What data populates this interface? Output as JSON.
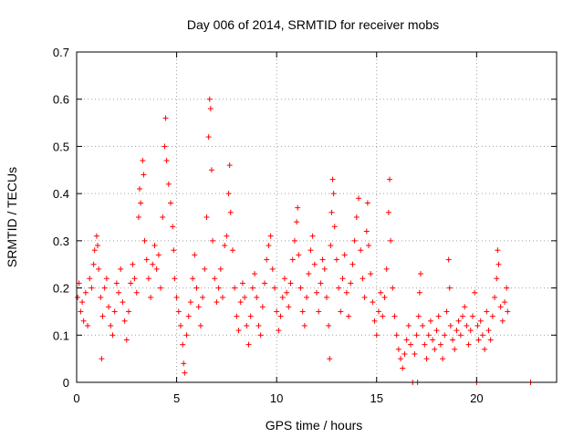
{
  "chart_data": {
    "type": "scatter",
    "title": "Day 006 of 2014, SRMTID for receiver mobs",
    "xlabel": "GPS time / hours",
    "ylabel": "SRMTID / TECUs",
    "xlim": [
      0,
      24
    ],
    "ylim": [
      0,
      0.7
    ],
    "xticks": [
      0,
      5,
      10,
      15,
      20
    ],
    "yticks": [
      0,
      0.1,
      0.2,
      0.3,
      0.4,
      0.5,
      0.6,
      0.7
    ],
    "xtick_labels": [
      "0",
      "5",
      "10",
      "15",
      "20"
    ],
    "ytick_labels": [
      "0",
      "0.1",
      "0.2",
      "0.3",
      "0.4",
      "0.5",
      "0.6",
      "0.7"
    ],
    "grid": true,
    "marker": "+",
    "color": "#ff0000",
    "series": [
      {
        "name": "SRMTID",
        "points": [
          [
            0.05,
            0.18
          ],
          [
            0.12,
            0.21
          ],
          [
            0.2,
            0.15
          ],
          [
            0.28,
            0.17
          ],
          [
            0.35,
            0.13
          ],
          [
            0.45,
            0.19
          ],
          [
            0.55,
            0.12
          ],
          [
            0.65,
            0.22
          ],
          [
            0.75,
            0.2
          ],
          [
            0.85,
            0.25
          ],
          [
            0.9,
            0.28
          ],
          [
            1.0,
            0.31
          ],
          [
            1.05,
            0.29
          ],
          [
            1.1,
            0.24
          ],
          [
            1.2,
            0.18
          ],
          [
            1.25,
            0.05
          ],
          [
            1.3,
            0.14
          ],
          [
            1.4,
            0.2
          ],
          [
            1.5,
            0.22
          ],
          [
            1.6,
            0.16
          ],
          [
            1.7,
            0.12
          ],
          [
            1.8,
            0.1
          ],
          [
            1.9,
            0.15
          ],
          [
            2.0,
            0.21
          ],
          [
            2.1,
            0.19
          ],
          [
            2.2,
            0.24
          ],
          [
            2.3,
            0.17
          ],
          [
            2.4,
            0.13
          ],
          [
            2.5,
            0.09
          ],
          [
            2.6,
            0.15
          ],
          [
            2.7,
            0.21
          ],
          [
            2.8,
            0.25
          ],
          [
            2.9,
            0.22
          ],
          [
            3.0,
            0.19
          ],
          [
            3.1,
            0.35
          ],
          [
            3.15,
            0.41
          ],
          [
            3.2,
            0.38
          ],
          [
            3.3,
            0.47
          ],
          [
            3.35,
            0.44
          ],
          [
            3.4,
            0.3
          ],
          [
            3.5,
            0.26
          ],
          [
            3.6,
            0.22
          ],
          [
            3.7,
            0.18
          ],
          [
            3.8,
            0.25
          ],
          [
            3.9,
            0.29
          ],
          [
            4.0,
            0.24
          ],
          [
            4.1,
            0.27
          ],
          [
            4.2,
            0.2
          ],
          [
            4.3,
            0.35
          ],
          [
            4.4,
            0.5
          ],
          [
            4.45,
            0.56
          ],
          [
            4.5,
            0.47
          ],
          [
            4.6,
            0.42
          ],
          [
            4.7,
            0.38
          ],
          [
            4.8,
            0.33
          ],
          [
            4.85,
            0.28
          ],
          [
            4.9,
            0.22
          ],
          [
            5.0,
            0.18
          ],
          [
            5.1,
            0.15
          ],
          [
            5.2,
            0.12
          ],
          [
            5.3,
            0.08
          ],
          [
            5.35,
            0.04
          ],
          [
            5.4,
            0.02
          ],
          [
            5.5,
            0.1
          ],
          [
            5.6,
            0.14
          ],
          [
            5.7,
            0.17
          ],
          [
            5.8,
            0.22
          ],
          [
            5.9,
            0.27
          ],
          [
            6.0,
            0.2
          ],
          [
            6.1,
            0.16
          ],
          [
            6.2,
            0.12
          ],
          [
            6.3,
            0.18
          ],
          [
            6.4,
            0.24
          ],
          [
            6.5,
            0.35
          ],
          [
            6.6,
            0.52
          ],
          [
            6.65,
            0.6
          ],
          [
            6.7,
            0.58
          ],
          [
            6.75,
            0.45
          ],
          [
            6.8,
            0.3
          ],
          [
            6.9,
            0.22
          ],
          [
            7.0,
            0.17
          ],
          [
            7.1,
            0.2
          ],
          [
            7.2,
            0.24
          ],
          [
            7.3,
            0.18
          ],
          [
            7.4,
            0.29
          ],
          [
            7.5,
            0.31
          ],
          [
            7.6,
            0.4
          ],
          [
            7.65,
            0.46
          ],
          [
            7.7,
            0.36
          ],
          [
            7.8,
            0.28
          ],
          [
            7.9,
            0.2
          ],
          [
            8.0,
            0.14
          ],
          [
            8.1,
            0.11
          ],
          [
            8.2,
            0.17
          ],
          [
            8.3,
            0.21
          ],
          [
            8.4,
            0.18
          ],
          [
            8.5,
            0.12
          ],
          [
            8.6,
            0.08
          ],
          [
            8.7,
            0.14
          ],
          [
            8.8,
            0.2
          ],
          [
            8.9,
            0.23
          ],
          [
            9.0,
            0.18
          ],
          [
            9.1,
            0.12
          ],
          [
            9.2,
            0.1
          ],
          [
            9.3,
            0.16
          ],
          [
            9.4,
            0.21
          ],
          [
            9.5,
            0.26
          ],
          [
            9.6,
            0.29
          ],
          [
            9.7,
            0.31
          ],
          [
            9.8,
            0.24
          ],
          [
            9.9,
            0.2
          ],
          [
            10.0,
            0.15
          ],
          [
            10.1,
            0.11
          ],
          [
            10.2,
            0.14
          ],
          [
            10.3,
            0.18
          ],
          [
            10.4,
            0.22
          ],
          [
            10.5,
            0.19
          ],
          [
            10.6,
            0.16
          ],
          [
            10.7,
            0.21
          ],
          [
            10.8,
            0.26
          ],
          [
            10.9,
            0.3
          ],
          [
            11.0,
            0.34
          ],
          [
            11.05,
            0.37
          ],
          [
            11.1,
            0.27
          ],
          [
            11.2,
            0.2
          ],
          [
            11.3,
            0.15
          ],
          [
            11.4,
            0.12
          ],
          [
            11.5,
            0.18
          ],
          [
            11.6,
            0.23
          ],
          [
            11.7,
            0.28
          ],
          [
            11.8,
            0.31
          ],
          [
            11.9,
            0.25
          ],
          [
            12.0,
            0.19
          ],
          [
            12.1,
            0.15
          ],
          [
            12.2,
            0.21
          ],
          [
            12.3,
            0.26
          ],
          [
            12.4,
            0.24
          ],
          [
            12.5,
            0.18
          ],
          [
            12.6,
            0.12
          ],
          [
            12.65,
            0.05
          ],
          [
            12.7,
            0.29
          ],
          [
            12.75,
            0.36
          ],
          [
            12.8,
            0.43
          ],
          [
            12.85,
            0.4
          ],
          [
            12.9,
            0.33
          ],
          [
            13.0,
            0.26
          ],
          [
            13.1,
            0.2
          ],
          [
            13.2,
            0.15
          ],
          [
            13.3,
            0.22
          ],
          [
            13.4,
            0.27
          ],
          [
            13.5,
            0.19
          ],
          [
            13.6,
            0.14
          ],
          [
            13.7,
            0.21
          ],
          [
            13.8,
            0.25
          ],
          [
            13.9,
            0.3
          ],
          [
            14.0,
            0.35
          ],
          [
            14.1,
            0.39
          ],
          [
            14.2,
            0.28
          ],
          [
            14.3,
            0.22
          ],
          [
            14.4,
            0.18
          ],
          [
            14.5,
            0.32
          ],
          [
            14.55,
            0.38
          ],
          [
            14.6,
            0.29
          ],
          [
            14.7,
            0.23
          ],
          [
            14.8,
            0.17
          ],
          [
            14.9,
            0.13
          ],
          [
            15.0,
            0.1
          ],
          [
            15.1,
            0.15
          ],
          [
            15.2,
            0.19
          ],
          [
            15.3,
            0.14
          ],
          [
            15.4,
            0.18
          ],
          [
            15.5,
            0.24
          ],
          [
            15.6,
            0.36
          ],
          [
            15.65,
            0.43
          ],
          [
            15.7,
            0.3
          ],
          [
            15.8,
            0.2
          ],
          [
            15.9,
            0.14
          ],
          [
            16.0,
            0.1
          ],
          [
            16.1,
            0.07
          ],
          [
            16.2,
            0.05
          ],
          [
            16.3,
            0.03
          ],
          [
            16.4,
            0.06
          ],
          [
            16.5,
            0.09
          ],
          [
            16.6,
            0.12
          ],
          [
            16.7,
            0.08
          ],
          [
            16.8,
            0.0
          ],
          [
            16.9,
            0.06
          ],
          [
            17.0,
            0.1
          ],
          [
            17.05,
            0.0
          ],
          [
            17.1,
            0.14
          ],
          [
            17.15,
            0.19
          ],
          [
            17.2,
            0.23
          ],
          [
            17.3,
            0.12
          ],
          [
            17.4,
            0.08
          ],
          [
            17.5,
            0.05
          ],
          [
            17.6,
            0.1
          ],
          [
            17.7,
            0.13
          ],
          [
            17.8,
            0.09
          ],
          [
            17.9,
            0.07
          ],
          [
            18.0,
            0.11
          ],
          [
            18.1,
            0.14
          ],
          [
            18.2,
            0.08
          ],
          [
            18.3,
            0.05
          ],
          [
            18.4,
            0.1
          ],
          [
            18.5,
            0.15
          ],
          [
            18.6,
            0.26
          ],
          [
            18.65,
            0.2
          ],
          [
            18.7,
            0.12
          ],
          [
            18.8,
            0.09
          ],
          [
            18.9,
            0.07
          ],
          [
            19.0,
            0.11
          ],
          [
            19.1,
            0.13
          ],
          [
            19.2,
            0.1
          ],
          [
            19.3,
            0.14
          ],
          [
            19.4,
            0.16
          ],
          [
            19.5,
            0.12
          ],
          [
            19.6,
            0.08
          ],
          [
            19.7,
            0.11
          ],
          [
            19.8,
            0.14
          ],
          [
            19.9,
            0.19
          ],
          [
            20.0,
            0.0
          ],
          [
            20.05,
            0.12
          ],
          [
            20.1,
            0.09
          ],
          [
            20.2,
            0.13
          ],
          [
            20.3,
            0.1
          ],
          [
            20.4,
            0.07
          ],
          [
            20.5,
            0.15
          ],
          [
            20.6,
            0.11
          ],
          [
            20.7,
            0.09
          ],
          [
            20.8,
            0.14
          ],
          [
            20.9,
            0.18
          ],
          [
            21.0,
            0.22
          ],
          [
            21.05,
            0.28
          ],
          [
            21.1,
            0.25
          ],
          [
            21.2,
            0.16
          ],
          [
            21.3,
            0.13
          ],
          [
            21.4,
            0.17
          ],
          [
            21.5,
            0.2
          ],
          [
            21.55,
            0.15
          ],
          [
            22.7,
            0.0
          ]
        ]
      }
    ]
  }
}
